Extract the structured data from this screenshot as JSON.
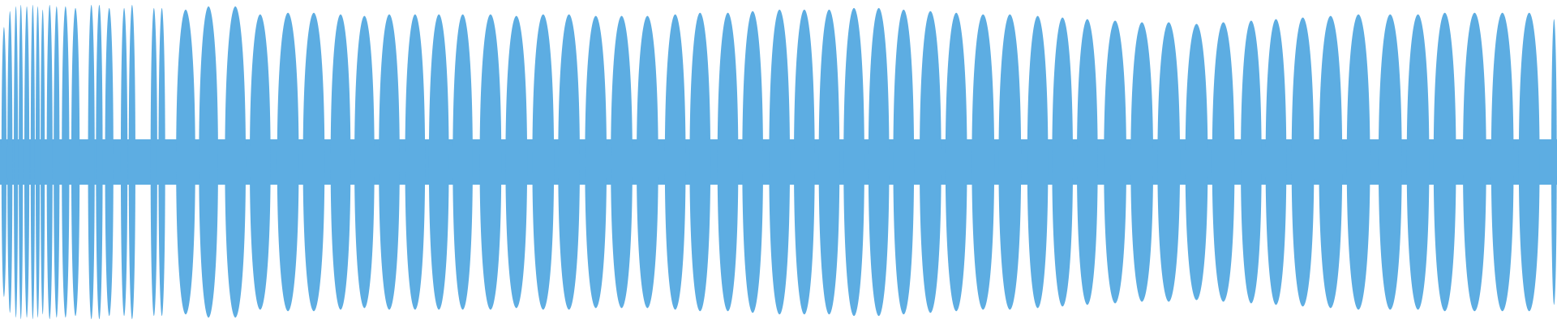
{
  "chart_data": {
    "type": "waveform",
    "color": "#5dade2",
    "xlim": [
      0,
      1568
    ],
    "ylim": [
      -1,
      1
    ],
    "x": [
      4,
      10,
      16,
      21,
      27,
      33,
      38,
      43,
      50,
      57,
      66,
      76,
      92,
      100,
      110,
      125,
      133,
      155,
      163,
      187,
      210,
      237,
      262,
      290,
      316,
      343,
      367,
      392,
      418,
      442,
      466,
      494,
      520,
      547,
      573,
      600,
      626,
      652,
      680,
      705,
      733,
      758,
      785,
      810,
      835,
      860,
      885,
      910,
      937,
      963,
      990,
      1017,
      1045,
      1070,
      1095,
      1123,
      1150,
      1177,
      1205,
      1232,
      1260,
      1285,
      1312,
      1340,
      1368,
      1400,
      1428,
      1455,
      1485,
      1513,
      1540,
      1565
    ],
    "values": [
      0.85,
      0.95,
      0.98,
      0.99,
      0.98,
      0.99,
      0.98,
      0.96,
      0.99,
      0.98,
      0.98,
      0.97,
      0.99,
      0.99,
      0.97,
      0.97,
      0.99,
      0.97,
      0.97,
      0.96,
      0.98,
      0.98,
      0.93,
      0.94,
      0.94,
      0.93,
      0.92,
      0.93,
      0.93,
      0.93,
      0.93,
      0.93,
      0.92,
      0.93,
      0.93,
      0.92,
      0.92,
      0.92,
      0.93,
      0.94,
      0.94,
      0.95,
      0.96,
      0.96,
      0.96,
      0.97,
      0.97,
      0.96,
      0.95,
      0.94,
      0.93,
      0.93,
      0.92,
      0.91,
      0.9,
      0.89,
      0.88,
      0.88,
      0.87,
      0.88,
      0.89,
      0.9,
      0.91,
      0.92,
      0.93,
      0.93,
      0.93,
      0.94,
      0.94,
      0.94,
      0.94,
      0.9
    ]
  }
}
